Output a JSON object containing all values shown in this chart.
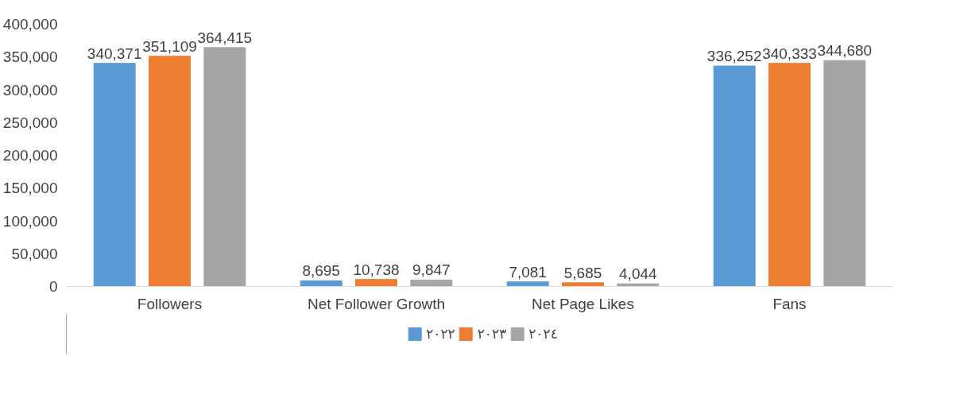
{
  "chart_data": {
    "type": "bar",
    "categories": [
      "Followers",
      "Net Follower Growth",
      "Net Page Likes",
      "Fans"
    ],
    "series": [
      {
        "name": "٢٠٢٢",
        "color": "#5b9bd5",
        "values": [
          340371,
          8695,
          7081,
          336252
        ],
        "value_labels": [
          "340,371",
          "8,695",
          "7,081",
          "336,252"
        ]
      },
      {
        "name": "٢٠٢٣",
        "color": "#ed7d31",
        "values": [
          351109,
          10738,
          5685,
          340333
        ],
        "value_labels": [
          "351,109",
          "10,738",
          "5,685",
          "340,333"
        ]
      },
      {
        "name": "٢٠٢٤",
        "color": "#a5a5a5",
        "values": [
          364415,
          9847,
          4044,
          344680
        ],
        "value_labels": [
          "364,415",
          "9,847",
          "4,044",
          "344,680"
        ]
      }
    ],
    "ylim": [
      0,
      400000
    ],
    "yticks": [
      {
        "value": 0,
        "label": "0"
      },
      {
        "value": 50000,
        "label": "50,000"
      },
      {
        "value": 100000,
        "label": "100,000"
      },
      {
        "value": 150000,
        "label": "150,000"
      },
      {
        "value": 200000,
        "label": "200,000"
      },
      {
        "value": 250000,
        "label": "250,000"
      },
      {
        "value": 300000,
        "label": "300,000"
      },
      {
        "value": 350000,
        "label": "350,000"
      },
      {
        "value": 400000,
        "label": "400,000"
      }
    ],
    "grid": false,
    "legend": "bottom"
  }
}
